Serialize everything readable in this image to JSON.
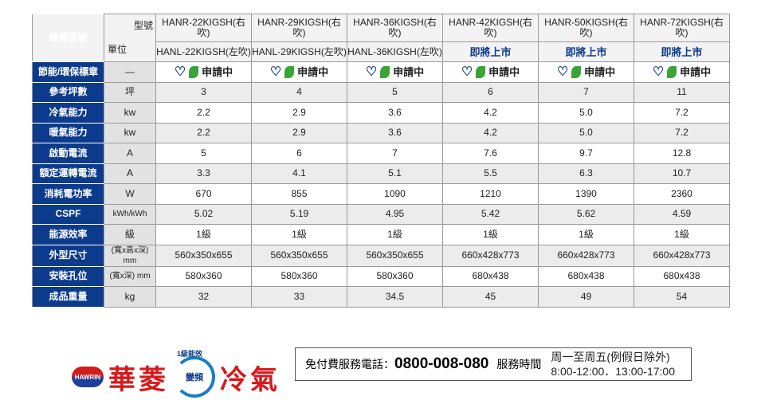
{
  "header": {
    "row_label": "機種型號",
    "model_label": "型號",
    "unit_label": "單位",
    "models": [
      {
        "r": "HANR-22KIGSH(右吹)",
        "l": "HANL-22KIGSH(左吹)"
      },
      {
        "r": "HANR-29KIGSH(右吹)",
        "l": "HANL-29KIGSH(左吹)"
      },
      {
        "r": "HANR-36KIGSH(右吹)",
        "l": "HANL-36KIGSH(左吹)"
      },
      {
        "r": "HANR-42KIGSH(右吹)",
        "l": "即將上市"
      },
      {
        "r": "HANR-50KIGSH(右吹)",
        "l": "即將上市"
      },
      {
        "r": "HANR-72KIGSH(右吹)",
        "l": "即將上市"
      }
    ]
  },
  "badge_row": {
    "label": "節能/環保標章",
    "unit": "—",
    "text": "申請中",
    "icons": [
      "energy-label-heart-icon",
      "green-leaf-icon"
    ]
  },
  "rows": [
    {
      "label": "參考坪數",
      "unit": "坪",
      "values": [
        "3",
        "4",
        "5",
        "6",
        "7",
        "11"
      ]
    },
    {
      "label": "冷氣能力",
      "unit": "kw",
      "values": [
        "2.2",
        "2.9",
        "3.6",
        "4.2",
        "5.0",
        "7.2"
      ]
    },
    {
      "label": "暖氣能力",
      "unit": "kw",
      "values": [
        "2.2",
        "2.9",
        "3.6",
        "4.2",
        "5.0",
        "7.2"
      ]
    },
    {
      "label": "啟動電流",
      "unit": "A",
      "values": [
        "5",
        "6",
        "7",
        "7.6",
        "9.7",
        "12.8"
      ]
    },
    {
      "label": "額定運轉電流",
      "unit": "A",
      "values": [
        "3.3",
        "4.1",
        "5.1",
        "5.5",
        "6.3",
        "10.7"
      ]
    },
    {
      "label": "消耗電功率",
      "unit": "W",
      "values": [
        "670",
        "855",
        "1090",
        "1210",
        "1390",
        "2360"
      ]
    },
    {
      "label": "CSPF",
      "unit": "kWh/kWh",
      "values": [
        "5.02",
        "5.19",
        "4.95",
        "5.42",
        "5.62",
        "4.59"
      ]
    },
    {
      "label": "能源效率",
      "unit": "級",
      "values": [
        "1級",
        "1級",
        "1級",
        "1級",
        "1級",
        "1級"
      ]
    },
    {
      "label": "外型尺寸",
      "unit": "(寬x高x深) mm",
      "values": [
        "560x350x655",
        "560x350x655",
        "560x350x655",
        "660x428x773",
        "660x428x773",
        "660x428x773"
      ]
    },
    {
      "label": "安裝孔位",
      "unit": "(寬x深) mm",
      "values": [
        "580x360",
        "580x360",
        "580x360",
        "680x438",
        "680x438",
        "680x438"
      ]
    },
    {
      "label": "成品重量",
      "unit": "kg",
      "values": [
        "32",
        "33",
        "34.5",
        "45",
        "49",
        "54"
      ]
    }
  ],
  "footer": {
    "logo_text": "HAWRIN",
    "brand_left": "華菱",
    "brand_right": "冷氣",
    "inverter": "變頻",
    "efficiency": "1級能效",
    "hotline_label": "免付費服務電話：",
    "hotline": "0800-008-080",
    "hours_label": "服務時間",
    "days": "周一至周五(例假日除外)",
    "times": "8:00-12:00．13:00-17:00"
  },
  "colors": {
    "label_bg": "#0d3b8c",
    "brand_red": "#d7191c"
  }
}
